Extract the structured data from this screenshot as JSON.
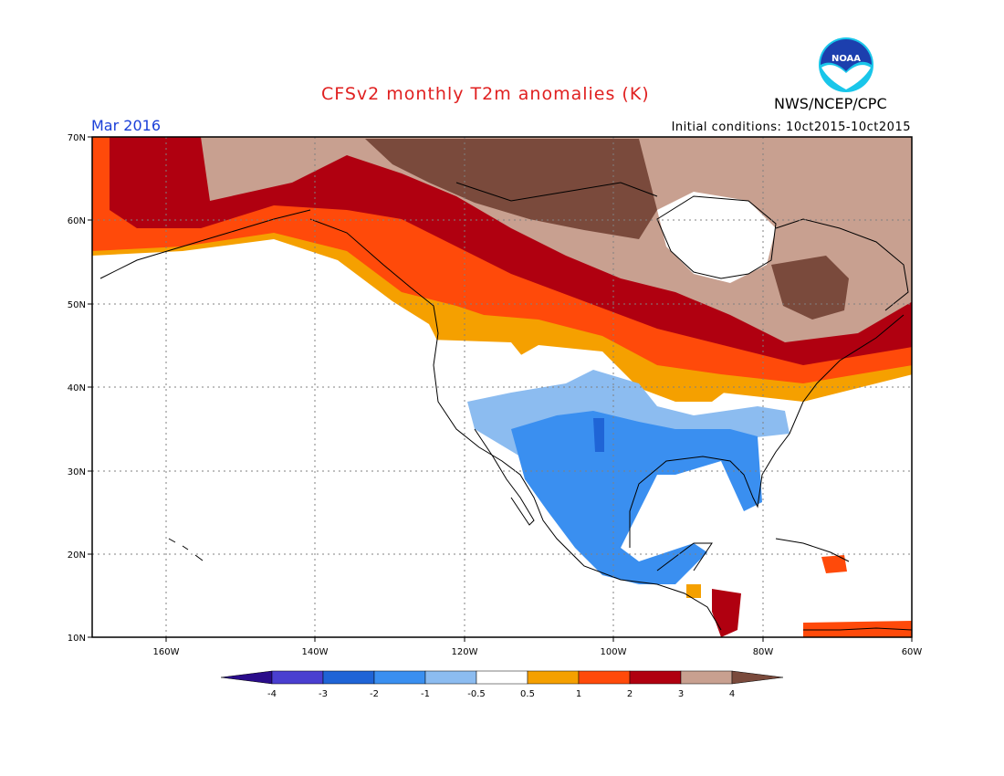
{
  "header": {
    "title": "CFSv2 monthly T2m anomalies (K)",
    "agency": "NWS/NCEP/CPC",
    "logo_text": "NOAA",
    "month": "Mar 2016",
    "initial_conditions": "Initial conditions: 10ct2015-10ct2015"
  },
  "axes": {
    "lat_labels": [
      "70N",
      "60N",
      "50N",
      "40N",
      "30N",
      "20N",
      "10N"
    ],
    "lon_labels": [
      "160W",
      "140W",
      "120W",
      "100W",
      "80W",
      "60W"
    ]
  },
  "colorbar": {
    "ticks": [
      "-4",
      "-3",
      "-2",
      "-1",
      "-0.5",
      "0.5",
      "1",
      "2",
      "3",
      "4"
    ],
    "colors": [
      "#2a0c8a",
      "#4a3fd0",
      "#1f64d6",
      "#3a8ff0",
      "#8cbcf0",
      "#ffffff",
      "#f5a000",
      "#ff4a0a",
      "#b00010",
      "#c8a090",
      "#7a4a3c"
    ]
  }
}
